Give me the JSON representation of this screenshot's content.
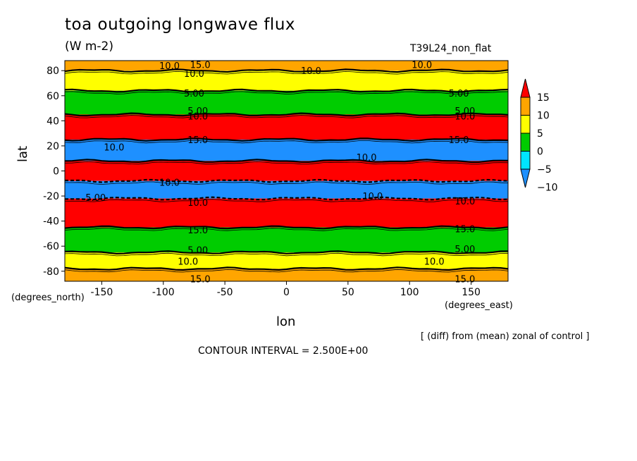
{
  "chart_data": {
    "type": "heatmap",
    "title": "toa outgoing longwave flux",
    "units": "(W m-2)",
    "run_label": "T39L24_non_flat",
    "xlabel": "lon",
    "ylabel": "lat",
    "x_units_label": "(degrees_east)",
    "y_units_label": "(degrees_north)",
    "xlim": [
      -180,
      180
    ],
    "ylim": [
      -88,
      88
    ],
    "x_ticks": [
      -150,
      -100,
      -50,
      0,
      50,
      100,
      150
    ],
    "y_ticks": [
      -80,
      -60,
      -40,
      -20,
      0,
      20,
      40,
      60,
      80
    ],
    "colorbar": {
      "levels": [
        -10,
        -5,
        0,
        5,
        10,
        15
      ],
      "labels": [
        "15",
        "10",
        "5",
        "0",
        "−5",
        "−10"
      ],
      "colors": [
        "#1e90ff",
        "#00e5ff",
        "#00cc00",
        "#ffff00",
        "#ffa500",
        "#ff0000"
      ],
      "band_keys": [
        "lt_neg5",
        "neg5_0",
        "0_5",
        "5_10",
        "10_15",
        "gt_15"
      ]
    },
    "zonal_bands": [
      {
        "lat_from": 80,
        "lat_to": 88,
        "class": "10_15"
      },
      {
        "lat_from": 64,
        "lat_to": 80,
        "class": "5_10"
      },
      {
        "lat_from": 45,
        "lat_to": 64,
        "class": "0_5"
      },
      {
        "lat_from": 25,
        "lat_to": 45,
        "class": "gt_15"
      },
      {
        "lat_from": 8,
        "lat_to": 25,
        "class": "lt_neg5"
      },
      {
        "lat_from": -8,
        "lat_to": 8,
        "class": "gt_15"
      },
      {
        "lat_from": -22,
        "lat_to": -8,
        "class": "lt_neg5"
      },
      {
        "lat_from": -45,
        "lat_to": -22,
        "class": "gt_15"
      },
      {
        "lat_from": -65,
        "lat_to": -45,
        "class": "0_5"
      },
      {
        "lat_from": -78,
        "lat_to": -65,
        "class": "5_10"
      },
      {
        "lat_from": -88,
        "lat_to": -78,
        "class": "10_15"
      }
    ],
    "contour_labels": [
      {
        "lon": -95,
        "lat": 84,
        "text": "10.0"
      },
      {
        "lon": -70,
        "lat": 85,
        "text": "15.0"
      },
      {
        "lon": -75,
        "lat": 78,
        "text": "10.0"
      },
      {
        "lon": 20,
        "lat": 80,
        "text": "10.0"
      },
      {
        "lon": 110,
        "lat": 85,
        "text": "10.0"
      },
      {
        "lon": -75,
        "lat": 62,
        "text": "5.00"
      },
      {
        "lon": 140,
        "lat": 62,
        "text": "5.00"
      },
      {
        "lon": -72,
        "lat": 48,
        "text": "5.00"
      },
      {
        "lon": -72,
        "lat": 44,
        "text": "10.0"
      },
      {
        "lon": 145,
        "lat": 48,
        "text": "5.00"
      },
      {
        "lon": 145,
        "lat": 44,
        "text": "10.0"
      },
      {
        "lon": -140,
        "lat": 19,
        "text": "10.0"
      },
      {
        "lon": -72,
        "lat": 25,
        "text": "15.0"
      },
      {
        "lon": 140,
        "lat": 25,
        "text": "15.0"
      },
      {
        "lon": 65,
        "lat": 11,
        "text": "10.0"
      },
      {
        "lon": -95,
        "lat": -9,
        "text": "10.0"
      },
      {
        "lon": -155,
        "lat": -21,
        "text": "5.00"
      },
      {
        "lon": 70,
        "lat": -20,
        "text": "10.0"
      },
      {
        "lon": -72,
        "lat": -25,
        "text": "10.0"
      },
      {
        "lon": 145,
        "lat": -24,
        "text": "10.0"
      },
      {
        "lon": -72,
        "lat": -47,
        "text": "15.0"
      },
      {
        "lon": 145,
        "lat": -46,
        "text": "15.0"
      },
      {
        "lon": -72,
        "lat": -63,
        "text": "5.00"
      },
      {
        "lon": 145,
        "lat": -62,
        "text": "5.00"
      },
      {
        "lon": -80,
        "lat": -72,
        "text": "10.0"
      },
      {
        "lon": 120,
        "lat": -72,
        "text": "10.0"
      },
      {
        "lon": -70,
        "lat": -86,
        "text": "15.0"
      },
      {
        "lon": 145,
        "lat": -86,
        "text": "15.0"
      }
    ],
    "contour_interval_text": "CONTOUR INTERVAL = 2.500E+00",
    "annotation": "[ (diff) from (mean) zonal of control ]"
  }
}
